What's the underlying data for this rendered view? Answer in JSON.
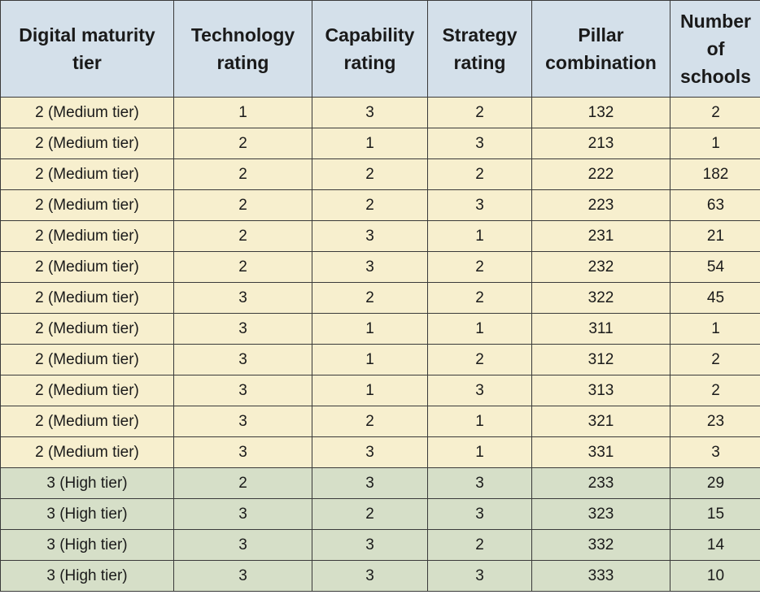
{
  "table": {
    "headers": [
      "Digital maturity tier",
      "Technology rating",
      "Capability rating",
      "Strategy rating",
      "Pillar combination",
      "Number of schools"
    ],
    "rows": [
      {
        "tier": "2 (Medium tier)",
        "technology": "1",
        "capability": "3",
        "strategy": "2",
        "combination": "132",
        "schools": "2"
      },
      {
        "tier": "2 (Medium tier)",
        "technology": "2",
        "capability": "1",
        "strategy": "3",
        "combination": "213",
        "schools": "1"
      },
      {
        "tier": "2 (Medium tier)",
        "technology": "2",
        "capability": "2",
        "strategy": "2",
        "combination": "222",
        "schools": "182"
      },
      {
        "tier": "2 (Medium tier)",
        "technology": "2",
        "capability": "2",
        "strategy": "3",
        "combination": "223",
        "schools": "63"
      },
      {
        "tier": "2 (Medium tier)",
        "technology": "2",
        "capability": "3",
        "strategy": "1",
        "combination": "231",
        "schools": "21"
      },
      {
        "tier": "2 (Medium tier)",
        "technology": "2",
        "capability": "3",
        "strategy": "2",
        "combination": "232",
        "schools": "54"
      },
      {
        "tier": "2 (Medium tier)",
        "technology": "3",
        "capability": "2",
        "strategy": "2",
        "combination": "322",
        "schools": "45"
      },
      {
        "tier": "2 (Medium tier)",
        "technology": "3",
        "capability": "1",
        "strategy": "1",
        "combination": "311",
        "schools": "1"
      },
      {
        "tier": "2 (Medium tier)",
        "technology": "3",
        "capability": "1",
        "strategy": "2",
        "combination": "312",
        "schools": "2"
      },
      {
        "tier": "2 (Medium tier)",
        "technology": "3",
        "capability": "1",
        "strategy": "3",
        "combination": "313",
        "schools": "2"
      },
      {
        "tier": "2 (Medium tier)",
        "technology": "3",
        "capability": "2",
        "strategy": "1",
        "combination": "321",
        "schools": "23"
      },
      {
        "tier": "2 (Medium tier)",
        "technology": "3",
        "capability": "3",
        "strategy": "1",
        "combination": "331",
        "schools": "3"
      },
      {
        "tier": "3 (High tier)",
        "technology": "2",
        "capability": "3",
        "strategy": "3",
        "combination": "233",
        "schools": "29"
      },
      {
        "tier": "3 (High tier)",
        "technology": "3",
        "capability": "2",
        "strategy": "3",
        "combination": "323",
        "schools": "15"
      },
      {
        "tier": "3 (High tier)",
        "technology": "3",
        "capability": "3",
        "strategy": "2",
        "combination": "332",
        "schools": "14"
      },
      {
        "tier": "3 (High tier)",
        "technology": "3",
        "capability": "3",
        "strategy": "3",
        "combination": "333",
        "schools": "10"
      }
    ]
  },
  "colors": {
    "header_bg": "#d4e0ea",
    "medium_tier_bg": "#f7efce",
    "high_tier_bg": "#d6dfc8",
    "border": "#3a3a3a"
  }
}
